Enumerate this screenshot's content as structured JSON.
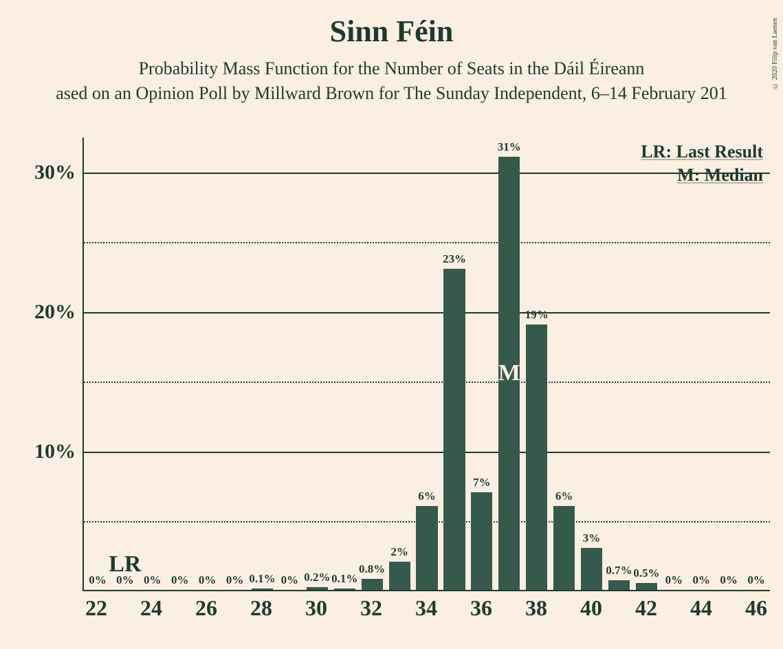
{
  "copyright": "© 2020 Filip van Laenen",
  "title": "Sinn Féin",
  "subtitle1": "Probability Mass Function for the Number of Seats in the Dáil Éireann",
  "subtitle2": "ased on an Opinion Poll by Millward Brown for The Sunday Independent, 6–14 February 201",
  "legend": {
    "lr": "LR: Last Result",
    "m": "M: Median"
  },
  "chart": {
    "type": "bar",
    "background_color": "#fbeee2",
    "bar_color": "#355a4b",
    "text_color": "#1e3a2f",
    "median_text_color": "#fbeee2",
    "ylim_max_pct": 32.5,
    "yticks": [
      {
        "value": 30,
        "label": "30%",
        "style": "solid"
      },
      {
        "value": 25,
        "label": "",
        "style": "dotted"
      },
      {
        "value": 20,
        "label": "20%",
        "style": "solid"
      },
      {
        "value": 15,
        "label": "",
        "style": "dotted"
      },
      {
        "value": 10,
        "label": "10%",
        "style": "solid"
      },
      {
        "value": 5,
        "label": "",
        "style": "dotted"
      }
    ],
    "x_start": 22,
    "x_end": 46,
    "x_tick_step": 2,
    "lr_seat": 23,
    "median_seat": 37,
    "lr_text": "LR",
    "m_text": "M",
    "bars": [
      {
        "x": 22,
        "pct": 0,
        "label": "0%"
      },
      {
        "x": 23,
        "pct": 0,
        "label": "0%"
      },
      {
        "x": 24,
        "pct": 0,
        "label": "0%"
      },
      {
        "x": 25,
        "pct": 0,
        "label": "0%"
      },
      {
        "x": 26,
        "pct": 0,
        "label": "0%"
      },
      {
        "x": 27,
        "pct": 0,
        "label": "0%"
      },
      {
        "x": 28,
        "pct": 0.1,
        "label": "0.1%"
      },
      {
        "x": 29,
        "pct": 0,
        "label": "0%"
      },
      {
        "x": 30,
        "pct": 0.2,
        "label": "0.2%"
      },
      {
        "x": 31,
        "pct": 0.1,
        "label": "0.1%"
      },
      {
        "x": 32,
        "pct": 0.8,
        "label": "0.8%"
      },
      {
        "x": 33,
        "pct": 2,
        "label": "2%"
      },
      {
        "x": 34,
        "pct": 6,
        "label": "6%"
      },
      {
        "x": 35,
        "pct": 23,
        "label": "23%"
      },
      {
        "x": 36,
        "pct": 7,
        "label": "7%"
      },
      {
        "x": 37,
        "pct": 31,
        "label": "31%"
      },
      {
        "x": 38,
        "pct": 19,
        "label": "19%"
      },
      {
        "x": 39,
        "pct": 6,
        "label": "6%"
      },
      {
        "x": 40,
        "pct": 3,
        "label": "3%"
      },
      {
        "x": 41,
        "pct": 0.7,
        "label": "0.7%"
      },
      {
        "x": 42,
        "pct": 0.5,
        "label": "0.5%"
      },
      {
        "x": 43,
        "pct": 0,
        "label": "0%"
      },
      {
        "x": 44,
        "pct": 0,
        "label": "0%"
      },
      {
        "x": 45,
        "pct": 0,
        "label": "0%"
      },
      {
        "x": 46,
        "pct": 0,
        "label": "0%"
      }
    ]
  }
}
